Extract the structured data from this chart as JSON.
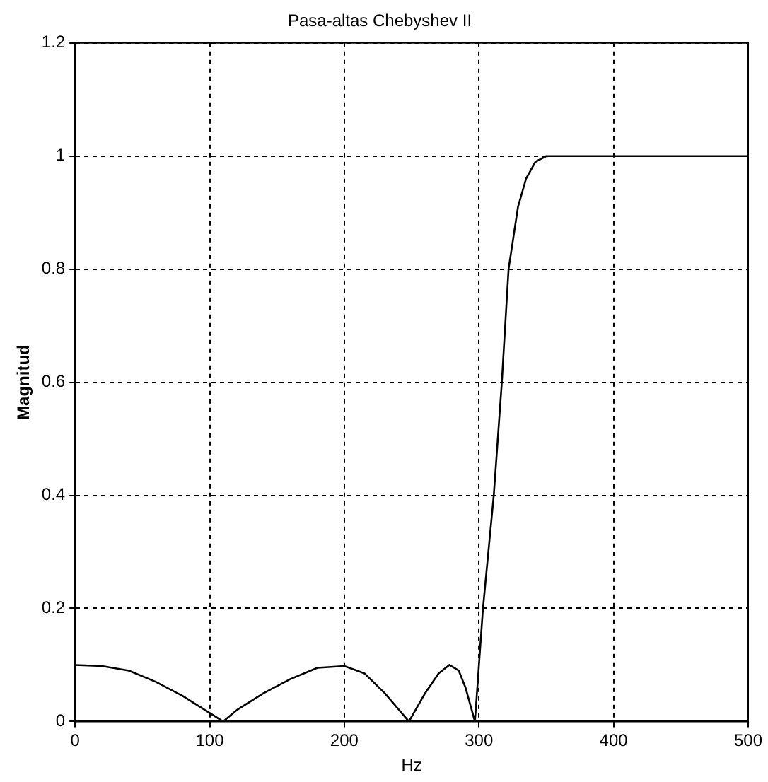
{
  "chart_data": {
    "type": "line",
    "title": "Pasa-altas Chebyshev II",
    "xlabel": "Hz",
    "ylabel": "Magnitud",
    "x": [
      0,
      20,
      40,
      60,
      80,
      100,
      110,
      120,
      140,
      160,
      180,
      200,
      215,
      230,
      248,
      260,
      270,
      278,
      285,
      290,
      297,
      300,
      303,
      311,
      317,
      322,
      329,
      335,
      342,
      350,
      360,
      400,
      450,
      500
    ],
    "series": [
      {
        "color": "#000000",
        "values": [
          0.1,
          0.098,
          0.09,
          0.07,
          0.045,
          0.015,
          0,
          0.02,
          0.05,
          0.075,
          0.095,
          0.098,
          0.085,
          0.05,
          0,
          0.05,
          0.085,
          0.1,
          0.09,
          0.06,
          0,
          0.1,
          0.2,
          0.4,
          0.6,
          0.8,
          0.91,
          0.96,
          0.99,
          1,
          1,
          1,
          1,
          1
        ]
      }
    ],
    "xlim": [
      0,
      500
    ],
    "xticks": [
      0,
      100,
      200,
      300,
      400,
      500
    ],
    "ylim": [
      0,
      1.2
    ],
    "yticks": [
      0,
      0.2,
      0.4,
      0.6,
      0.8,
      1,
      1.2
    ],
    "grid": true,
    "legend": false,
    "marker": "none",
    "line_style": "solid"
  }
}
